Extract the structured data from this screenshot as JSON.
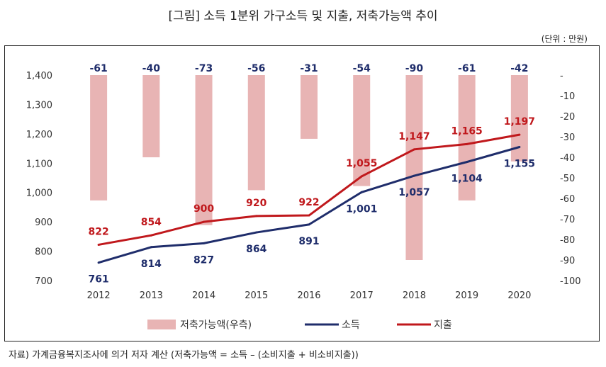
{
  "title": "[그림] 소득 1분위 가구소득 및 지출, 저축가능액 추이",
  "unit": "(단위 : 만원)",
  "source": "자료) 가계금융복지조사에 의거 저자 계산 (저축가능액 = 소득 – (소비지출 + 비소비지출))",
  "colors": {
    "bar": "#e8b4b4",
    "income": "#1f2d6b",
    "spending": "#c0181c"
  },
  "chart_data": {
    "type": "bar+line",
    "categories": [
      "2012",
      "2013",
      "2014",
      "2015",
      "2016",
      "2017",
      "2018",
      "2019",
      "2020"
    ],
    "y_left": {
      "range": [
        700,
        1400
      ],
      "ticks": [
        "700",
        "800",
        "900",
        "1,000",
        "1,100",
        "1,200",
        "1,300",
        "1,400"
      ]
    },
    "y_right": {
      "range": [
        -100,
        0
      ],
      "ticks": [
        "-",
        "-10",
        "-20",
        "-30",
        "-40",
        "-50",
        "-60",
        "-70",
        "-80",
        "-90",
        "-100"
      ]
    },
    "series": [
      {
        "name": "저축가능액(우측)",
        "type": "bar",
        "axis": "right",
        "values": [
          -61,
          -40,
          -73,
          -56,
          -31,
          -54,
          -90,
          -61,
          -42
        ],
        "labels": [
          "-61",
          "-40",
          "-73",
          "-56",
          "-31",
          "-54",
          "-90",
          "-61",
          "-42"
        ]
      },
      {
        "name": "소득",
        "type": "line",
        "axis": "left",
        "values": [
          761,
          814,
          827,
          864,
          891,
          1001,
          1057,
          1104,
          1155
        ],
        "labels": [
          "761",
          "814",
          "827",
          "864",
          "891",
          "1,001",
          "1,057",
          "1,104",
          "1,155"
        ]
      },
      {
        "name": "지출",
        "type": "line",
        "axis": "left",
        "values": [
          822,
          854,
          900,
          920,
          922,
          1055,
          1147,
          1165,
          1197
        ],
        "labels": [
          "822",
          "854",
          "900",
          "920",
          "922",
          "1,055",
          "1,147",
          "1,165",
          "1,197"
        ]
      }
    ],
    "legend": {
      "position": "bottom"
    },
    "grid": false
  }
}
